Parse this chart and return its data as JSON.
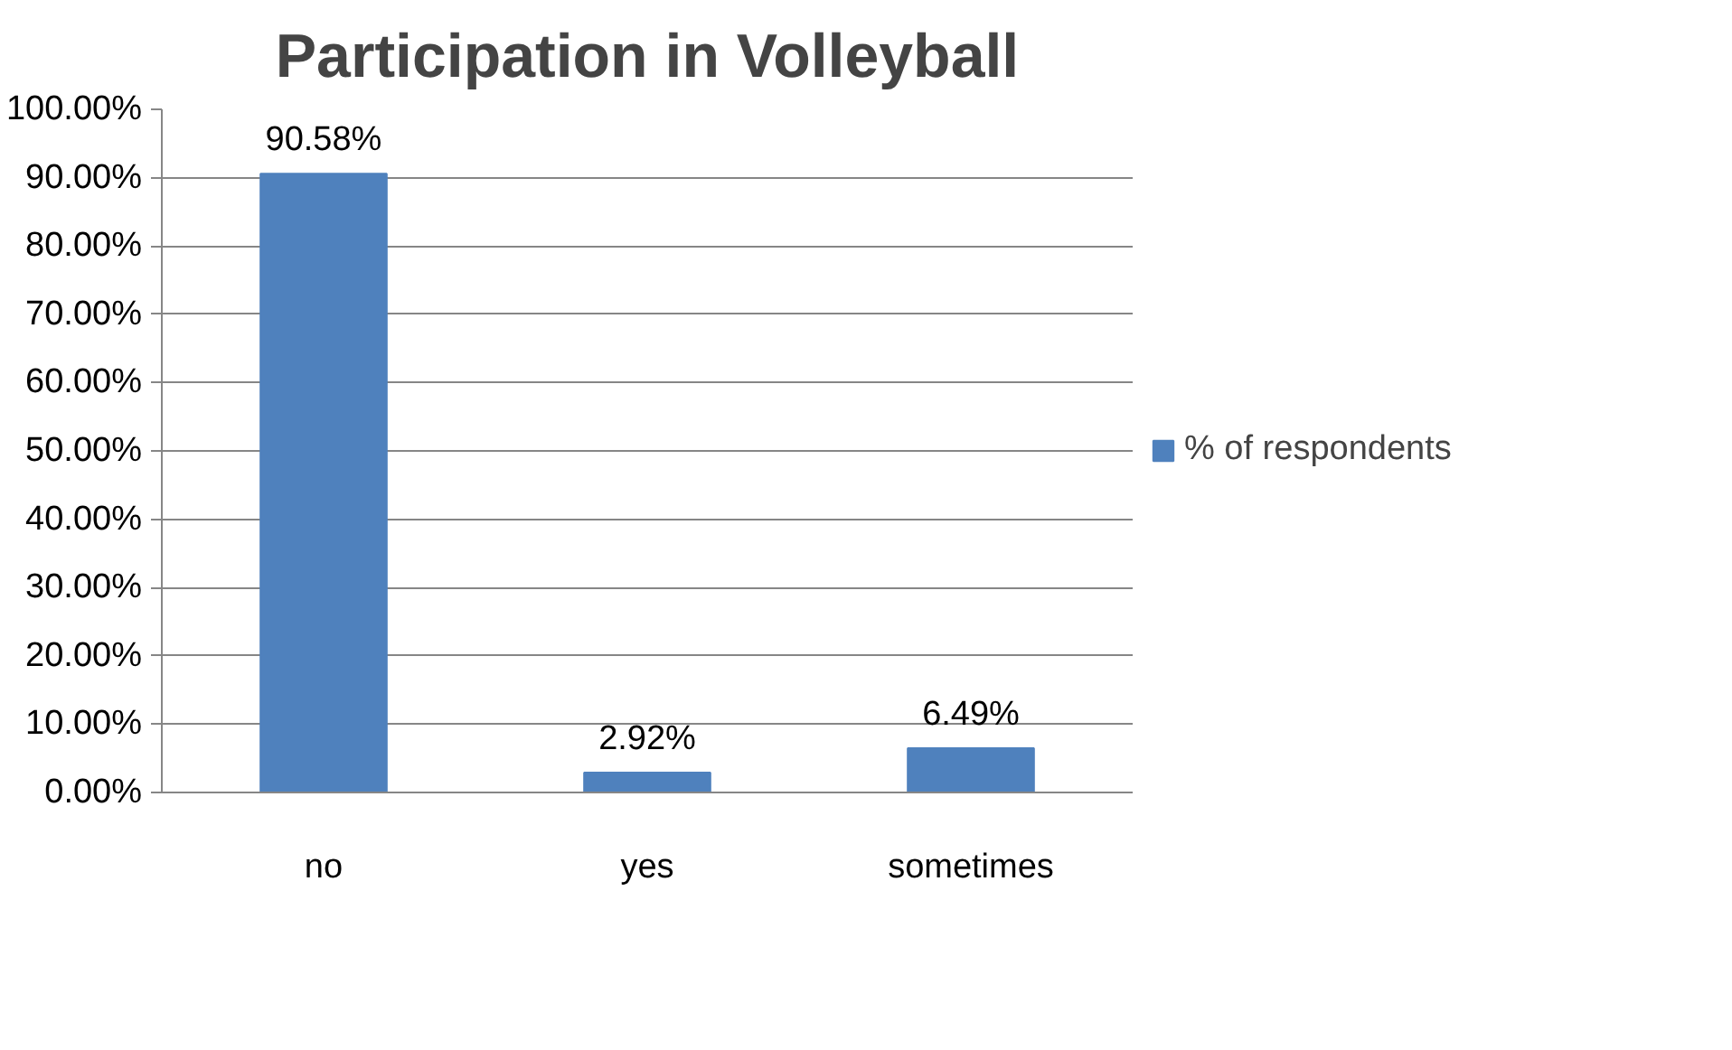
{
  "chart_data": {
    "type": "bar",
    "title": "Participation in Volleyball",
    "categories": [
      "no",
      "yes",
      "sometimes"
    ],
    "series": [
      {
        "name": "% of respondents",
        "color": "#4f81bd",
        "values": [
          90.58,
          2.92,
          6.49
        ],
        "value_labels": [
          "90.58%",
          "2.92%",
          "6.49%"
        ]
      }
    ],
    "ylim": [
      0,
      100
    ],
    "yticks": [
      {
        "value": 0,
        "label": "0.00%"
      },
      {
        "value": 10,
        "label": "10.00%"
      },
      {
        "value": 20,
        "label": "20.00%"
      },
      {
        "value": 30,
        "label": "30.00%"
      },
      {
        "value": 40,
        "label": "40.00%"
      },
      {
        "value": 50,
        "label": "50.00%"
      },
      {
        "value": 60,
        "label": "60.00%"
      },
      {
        "value": 70,
        "label": "70.00%"
      },
      {
        "value": 80,
        "label": "80.00%"
      },
      {
        "value": 90,
        "label": "90.00%"
      },
      {
        "value": 100,
        "label": "100.00%"
      }
    ],
    "grid": "y",
    "legend": "right"
  }
}
